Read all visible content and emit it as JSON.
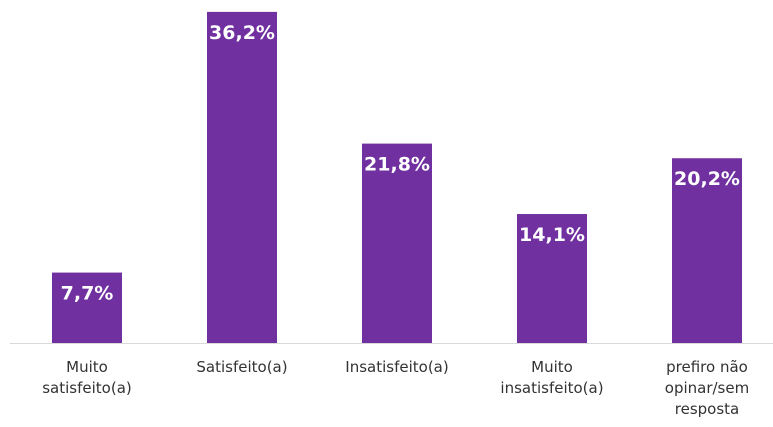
{
  "chart_data": {
    "type": "bar",
    "categories": [
      "Muito\nsatisfeito(a)",
      "Satisfeito(a)",
      "Insatisfeito(a)",
      "Muito\ninsatisfeito(a)",
      "prefiro não\nopinar/sem\nresposta"
    ],
    "values": [
      7.7,
      36.2,
      21.8,
      14.1,
      20.2
    ],
    "data_labels": [
      "7,7%",
      "36,2%",
      "21,8%",
      "14,1%",
      "20,2%"
    ],
    "title": "",
    "xlabel": "",
    "ylabel": "",
    "ylim": [
      0,
      37.5
    ],
    "grid": false,
    "legend": "none",
    "bar_color": "#7030a0",
    "axis_color": "#d9d9d9",
    "label_color": "#ffffff",
    "category_color": "#333333"
  }
}
